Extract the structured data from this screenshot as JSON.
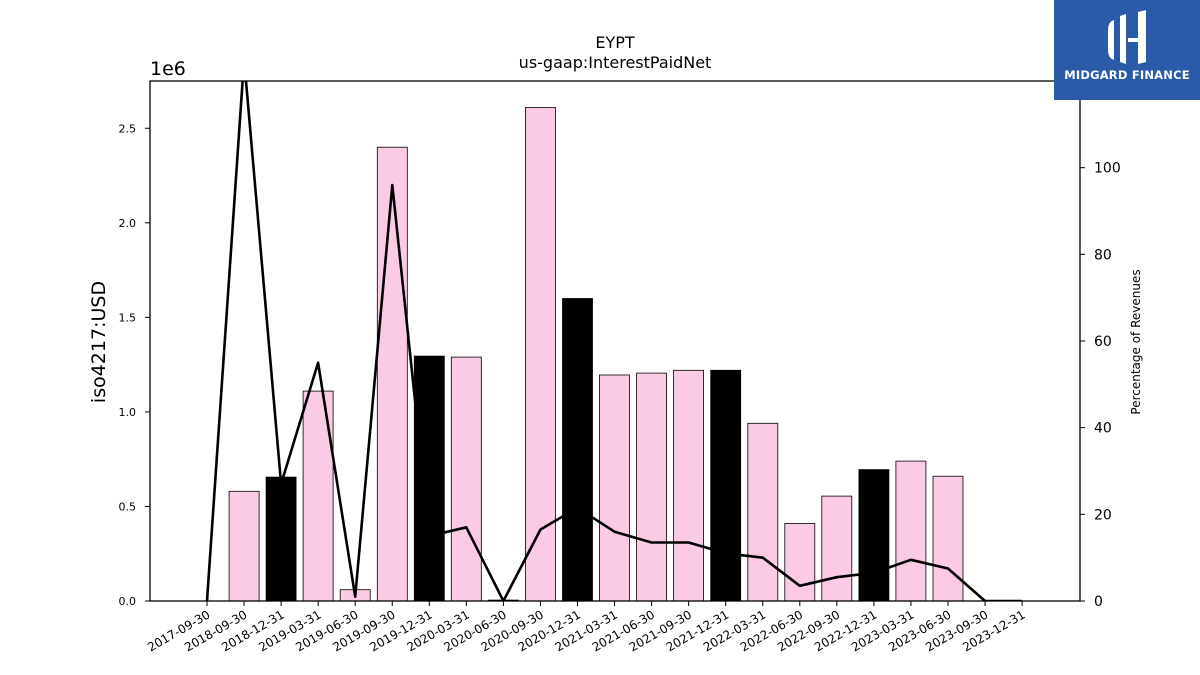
{
  "chart_data": {
    "type": "bar",
    "title": "EYPT",
    "subtitle": "us-gaap:InterestPaidNet",
    "ylabel": "iso4217:USD",
    "y2label": "Percentage of Revenues",
    "y_exponent_label": "1e6",
    "ylim": [
      0,
      2750000
    ],
    "y2lim": [
      0,
      120
    ],
    "yticks": [
      "0.0",
      "0.5",
      "1.0",
      "1.5",
      "2.0",
      "2.5"
    ],
    "y2ticks": [
      "0",
      "20",
      "40",
      "60",
      "80",
      "100"
    ],
    "categories": [
      "2017-09-30",
      "2018-09-30",
      "2018-12-31",
      "2019-03-31",
      "2019-06-30",
      "2019-09-30",
      "2019-12-31",
      "2020-03-31",
      "2020-06-30",
      "2020-09-30",
      "2020-12-31",
      "2021-03-31",
      "2021-06-30",
      "2021-09-30",
      "2021-12-31",
      "2022-03-31",
      "2022-06-30",
      "2022-09-30",
      "2022-12-31",
      "2023-03-31",
      "2023-06-30",
      "2023-09-30",
      "2023-12-31"
    ],
    "series": [
      {
        "values": [
          0,
          580000,
          655000,
          1110000,
          60000,
          2400000,
          1295000,
          1290000,
          5000,
          2610000,
          1600000,
          1195000,
          1205000,
          1220000,
          1220000,
          940000,
          410000,
          555000,
          695000,
          740000,
          660000,
          0,
          0
        ],
        "colors": [
          "#fbcbe5",
          "#fbcbe5",
          "#000000",
          "#fbcbe5",
          "#fbcbe5",
          "#fbcbe5",
          "#000000",
          "#fbcbe5",
          "#fbcbe5",
          "#fbcbe5",
          "#000000",
          "#fbcbe5",
          "#fbcbe5",
          "#fbcbe5",
          "#000000",
          "#fbcbe5",
          "#fbcbe5",
          "#fbcbe5",
          "#000000",
          "#fbcbe5",
          "#fbcbe5",
          "#fbcbe5",
          "#fbcbe5"
        ]
      },
      {
        "type": "line",
        "axis": "right",
        "values": [
          0,
          125,
          27,
          55,
          1,
          96,
          15,
          17,
          0,
          16.5,
          21.5,
          16,
          13.5,
          13.5,
          11,
          10,
          3.5,
          5.5,
          6.5,
          9.5,
          7.5,
          0,
          0
        ],
        "color": "#000000"
      }
    ]
  },
  "logo": {
    "text": "MIDGARD FINANCE",
    "bg_color": "#2a5aa8"
  }
}
